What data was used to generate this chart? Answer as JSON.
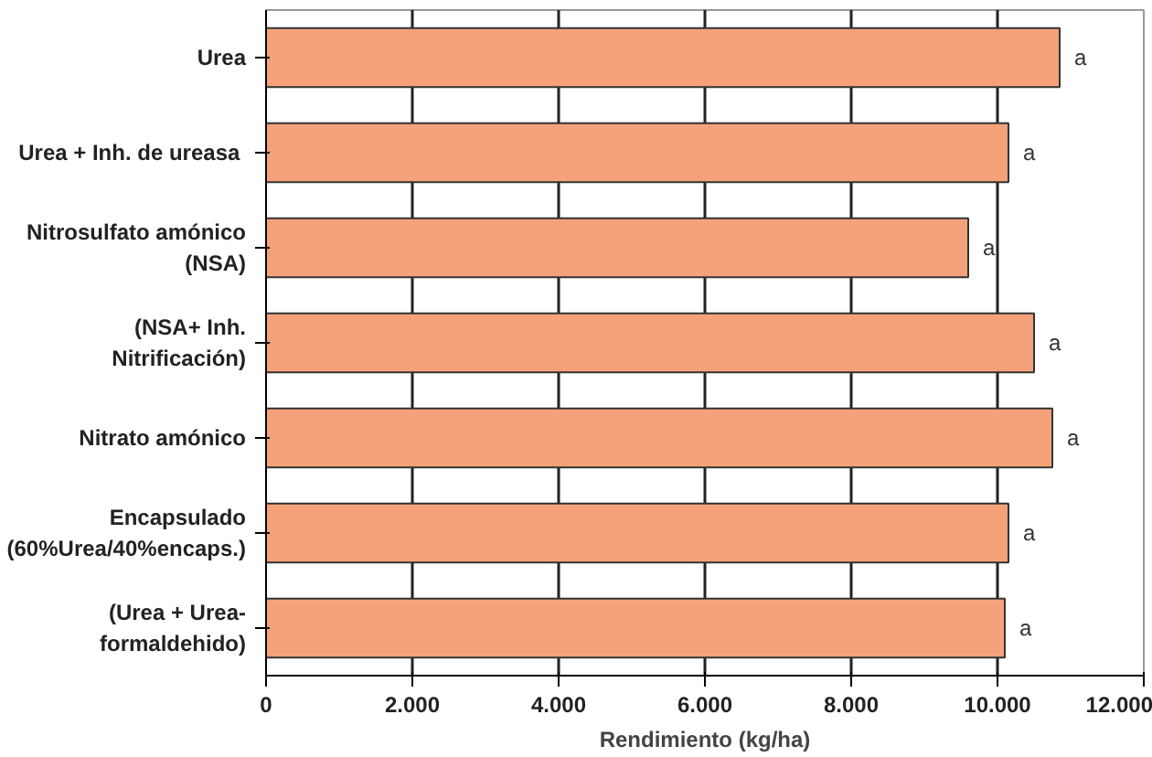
{
  "chart_data": {
    "type": "bar",
    "orientation": "horizontal",
    "xlabel": "Rendimiento (kg/ha)",
    "categories": [
      "Urea",
      "Urea + Inh. de  ureasa",
      "Nitrosulfato amónico (NSA)",
      "(NSA+ Inh. Nitrificación)",
      "Nitrato amónico",
      "Encapsulado (60%Urea/40%encaps.)",
      "(Urea + Urea-formaldehido)"
    ],
    "values": [
      10850,
      10150,
      9600,
      10500,
      10750,
      10150,
      10100
    ],
    "value_labels": [
      "a",
      "a",
      "a",
      "a",
      "a",
      "a",
      "a"
    ],
    "color": "#f5a27a",
    "xlim": [
      0,
      12000
    ],
    "xticks": [
      {
        "value": 0,
        "label": "0"
      },
      {
        "value": 2000,
        "label": "2.000"
      },
      {
        "value": 4000,
        "label": "4.000"
      },
      {
        "value": 6000,
        "label": "6.000"
      },
      {
        "value": 8000,
        "label": "8.000"
      },
      {
        "value": 10000,
        "label": "10.000"
      },
      {
        "value": 12000,
        "label": "12.000"
      }
    ],
    "grid": "x"
  }
}
